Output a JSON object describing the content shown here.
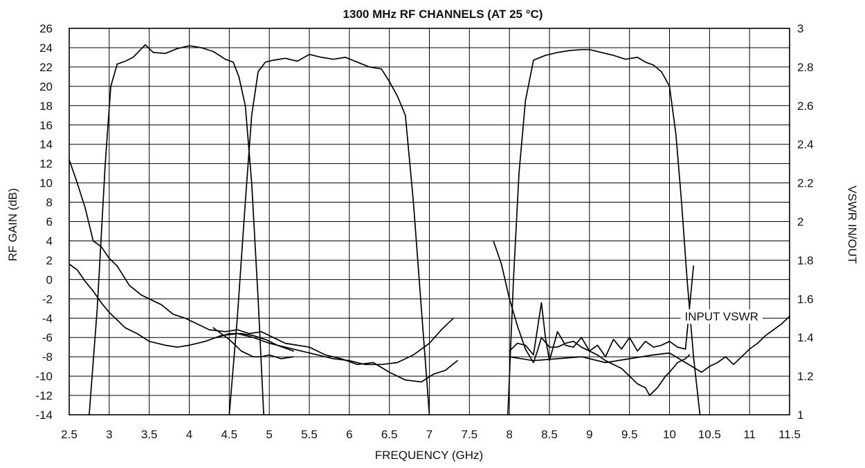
{
  "chart_data": {
    "type": "line",
    "title": "1300 MHz RF CHANNELS (AT 25 °C)",
    "xlabel": "FREQUENCY (GHz)",
    "ylabel": "RF GAIN (dB)",
    "y2label": "VSWR IN/OUT",
    "xlim": [
      2.5,
      11.5
    ],
    "ylim": [
      -14,
      26
    ],
    "y2lim": [
      1,
      3
    ],
    "grid": true,
    "x_ticks": [
      "2.5",
      "3",
      "3.5",
      "4",
      "4.5",
      "5",
      "5.5",
      "6",
      "6.5",
      "7",
      "7.5",
      "8",
      "8.5",
      "9",
      "9.5",
      "10",
      "10.5",
      "11",
      "11.5"
    ],
    "y_ticks": [
      "26",
      "24",
      "22",
      "20",
      "18",
      "16",
      "14",
      "12",
      "10",
      "8",
      "6",
      "4",
      "2",
      "0",
      "-2",
      "-4",
      "-6",
      "-8",
      "-10",
      "-12",
      "-14"
    ],
    "y2_ticks": [
      "3",
      "2.8",
      "2.6",
      "2.4",
      "2.2",
      "2",
      "1.8",
      "1.6",
      "1.4",
      "1.2",
      "1"
    ],
    "annotations": [
      {
        "text": "INPUT VSWR",
        "x": 10.65,
        "y2": 1.51
      }
    ],
    "series": [
      {
        "axis": "left",
        "x": [
          2.75,
          2.85,
          2.95,
          3.02,
          3.1,
          3.2,
          3.3,
          3.45,
          3.55,
          3.7,
          3.85,
          4.0,
          4.15,
          4.3,
          4.45,
          4.55,
          4.62,
          4.7,
          4.78,
          4.86,
          4.93
        ],
        "values": [
          -14,
          -3,
          12,
          20,
          22.3,
          22.6,
          23,
          24.3,
          23.5,
          23.4,
          23.9,
          24.2,
          24,
          23.6,
          22.8,
          22.5,
          21,
          18,
          10,
          -2,
          -14
        ]
      },
      {
        "axis": "left",
        "x": [
          4.5,
          4.6,
          4.7,
          4.78,
          4.86,
          4.95,
          5.05,
          5.2,
          5.35,
          5.5,
          5.65,
          5.8,
          5.95,
          6.1,
          6.25,
          6.4,
          6.5,
          6.6,
          6.7,
          6.8,
          6.9,
          7.0
        ],
        "values": [
          -14,
          -4,
          8,
          17,
          21.5,
          22.5,
          22.7,
          22.9,
          22.6,
          23.3,
          23,
          22.8,
          23,
          22.5,
          22,
          21.8,
          20.5,
          19,
          17,
          8,
          -3,
          -14
        ]
      },
      {
        "axis": "left",
        "x": [
          7.98,
          8.05,
          8.12,
          8.2,
          8.3,
          8.45,
          8.6,
          8.75,
          8.9,
          9.0,
          9.15,
          9.3,
          9.45,
          9.6,
          9.7,
          9.8,
          9.9,
          10.0,
          10.08,
          10.15,
          10.22,
          10.3,
          10.38
        ],
        "values": [
          -14,
          0,
          11,
          18.5,
          22.7,
          23.2,
          23.5,
          23.7,
          23.8,
          23.8,
          23.5,
          23.2,
          22.8,
          23,
          22.5,
          22.2,
          21.5,
          20,
          15,
          8,
          0,
          -8,
          -14
        ]
      },
      {
        "axis": "right",
        "x": [
          2.5,
          2.6,
          2.7,
          2.8,
          2.9,
          3.0,
          3.1,
          3.25,
          3.4,
          3.5,
          3.65,
          3.8,
          3.95,
          4.1,
          4.25,
          4.45,
          4.6,
          4.75,
          4.9,
          5.05,
          5.2,
          5.35,
          5.5,
          5.7,
          5.9,
          6.1,
          6.3,
          6.5,
          6.7,
          6.9,
          7.05,
          7.2,
          7.35
        ],
        "values": [
          2.32,
          2.2,
          2.07,
          1.9,
          1.87,
          1.81,
          1.77,
          1.67,
          1.62,
          1.6,
          1.57,
          1.52,
          1.5,
          1.47,
          1.44,
          1.43,
          1.44,
          1.42,
          1.43,
          1.4,
          1.37,
          1.36,
          1.35,
          1.31,
          1.29,
          1.26,
          1.27,
          1.22,
          1.18,
          1.17,
          1.21,
          1.23,
          1.28
        ]
      },
      {
        "axis": "right",
        "x": [
          2.5,
          2.6,
          2.7,
          2.8,
          2.9,
          3.0,
          3.1,
          3.2,
          3.35,
          3.5,
          3.6,
          3.7,
          3.85,
          4.0,
          4.2,
          4.4,
          4.6,
          4.8,
          5.0,
          5.2,
          5.5,
          5.8,
          6.0,
          6.2,
          6.4,
          6.6,
          6.8,
          7.0,
          7.15,
          7.3
        ],
        "values": [
          1.78,
          1.75,
          1.69,
          1.64,
          1.58,
          1.53,
          1.49,
          1.45,
          1.42,
          1.38,
          1.37,
          1.36,
          1.35,
          1.36,
          1.38,
          1.41,
          1.42,
          1.4,
          1.37,
          1.35,
          1.32,
          1.29,
          1.28,
          1.26,
          1.26,
          1.27,
          1.31,
          1.37,
          1.44,
          1.5
        ]
      },
      {
        "axis": "right",
        "x": [
          4.3,
          4.5,
          4.65,
          4.8,
          4.9,
          5.0,
          5.15,
          5.3
        ],
        "values": [
          1.45,
          1.39,
          1.33,
          1.3,
          1.3,
          1.31,
          1.29,
          1.3
        ]
      },
      {
        "axis": "right",
        "x": [
          4.35,
          4.5,
          4.65,
          4.8,
          4.95,
          5.1,
          5.3
        ],
        "values": [
          1.4,
          1.42,
          1.42,
          1.41,
          1.39,
          1.36,
          1.33
        ]
      },
      {
        "axis": "right",
        "x": [
          7.8,
          7.9,
          8.0,
          8.1,
          8.2,
          8.3,
          8.35,
          8.4,
          8.5,
          8.6,
          8.7,
          8.8,
          8.9,
          9.0,
          9.1,
          9.2,
          9.3,
          9.4,
          9.5,
          9.6,
          9.7,
          9.75,
          9.85,
          9.95,
          10.0,
          10.1,
          10.2,
          10.25
        ],
        "values": [
          1.9,
          1.78,
          1.6,
          1.46,
          1.34,
          1.27,
          1.33,
          1.4,
          1.35,
          1.35,
          1.37,
          1.38,
          1.35,
          1.33,
          1.31,
          1.28,
          1.26,
          1.24,
          1.2,
          1.16,
          1.14,
          1.1,
          1.14,
          1.2,
          1.22,
          1.27,
          1.29,
          1.31
        ]
      },
      {
        "axis": "right",
        "x": [
          8.0,
          8.1,
          8.2,
          8.3,
          8.4,
          8.45,
          8.5,
          8.6,
          8.7,
          8.8,
          8.9,
          9.0,
          9.1,
          9.2,
          9.3,
          9.4,
          9.5,
          9.6,
          9.7,
          9.8,
          9.9,
          10.0,
          10.1,
          10.2,
          10.3
        ],
        "values": [
          1.33,
          1.37,
          1.36,
          1.31,
          1.58,
          1.4,
          1.28,
          1.43,
          1.36,
          1.35,
          1.4,
          1.33,
          1.36,
          1.3,
          1.39,
          1.34,
          1.4,
          1.33,
          1.38,
          1.35,
          1.36,
          1.38,
          1.35,
          1.34,
          1.77
        ]
      },
      {
        "axis": "right",
        "x": [
          8.0,
          8.3,
          8.6,
          8.9,
          9.2,
          9.5,
          9.8,
          10.0,
          10.2,
          10.4,
          10.5,
          10.6,
          10.7,
          10.8,
          10.9,
          11.0,
          11.1,
          11.2,
          11.3,
          11.4,
          11.5
        ],
        "values": [
          1.3,
          1.28,
          1.29,
          1.3,
          1.27,
          1.29,
          1.31,
          1.32,
          1.27,
          1.22,
          1.25,
          1.27,
          1.3,
          1.26,
          1.3,
          1.34,
          1.37,
          1.41,
          1.44,
          1.47,
          1.51
        ]
      }
    ]
  }
}
